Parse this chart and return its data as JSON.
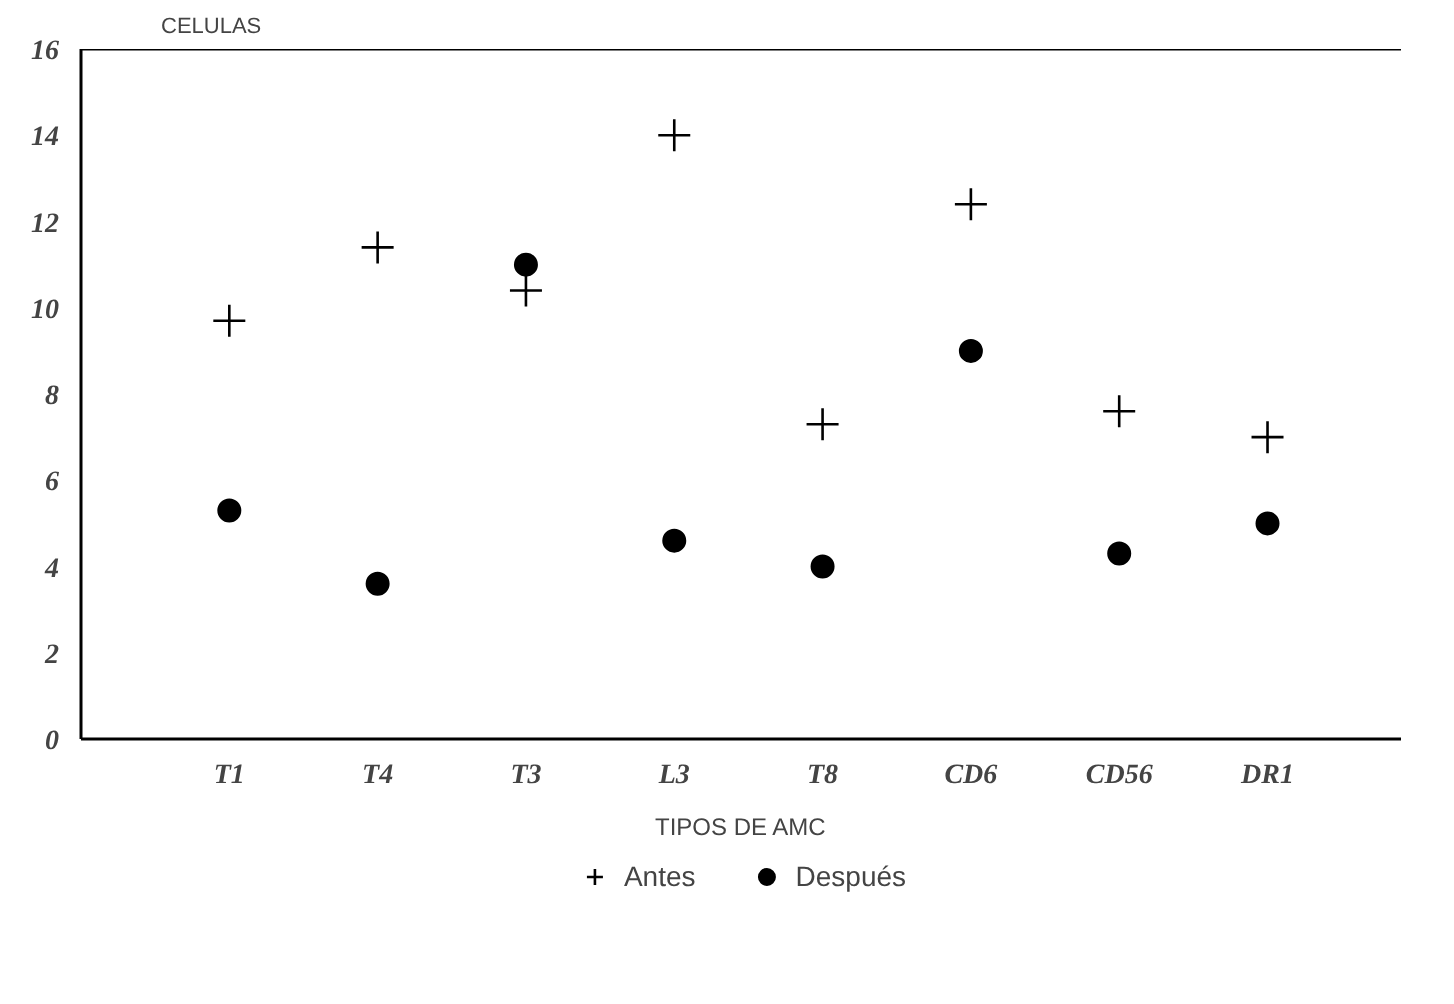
{
  "chart_data": {
    "type": "scatter",
    "ylabel": "CELULAS",
    "xlabel": "TIPOS DE AMC",
    "categories": [
      "T1",
      "T4",
      "T3",
      "L3",
      "T8",
      "CD6",
      "CD56",
      "DR1"
    ],
    "ylim": [
      0,
      16
    ],
    "yticks": [
      0,
      2,
      4,
      6,
      8,
      10,
      12,
      14,
      16
    ],
    "grid": false,
    "legend": "bottom",
    "series": [
      {
        "name": "Antes",
        "color": "#000000",
        "marker": "cross",
        "values": [
          9.7,
          11.4,
          10.4,
          14.0,
          7.3,
          12.4,
          7.6,
          7.0
        ]
      },
      {
        "name": "Después",
        "color": "#000000",
        "marker": "circle",
        "values": [
          5.3,
          3.6,
          11.0,
          4.6,
          4.0,
          9.0,
          4.3,
          5.0
        ]
      }
    ]
  }
}
